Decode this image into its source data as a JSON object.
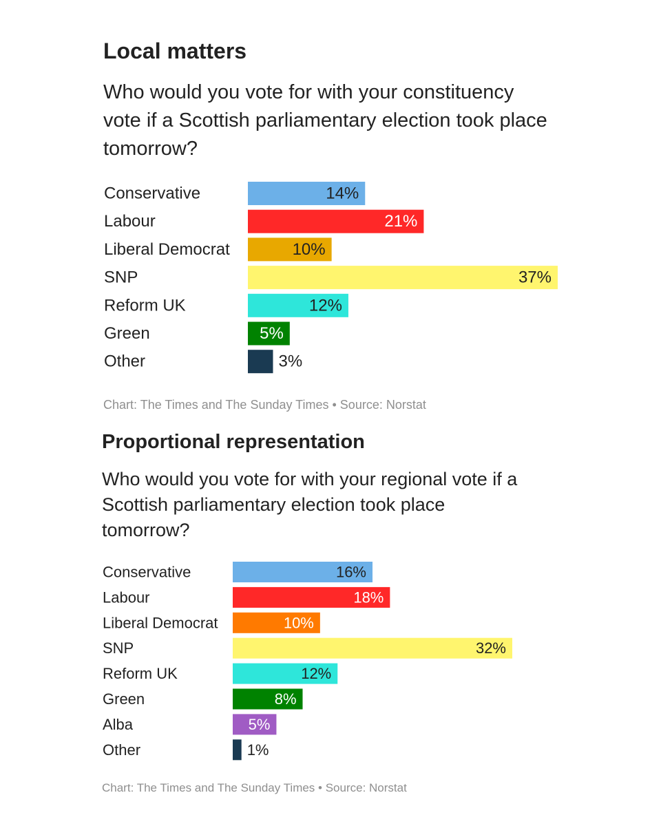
{
  "chart_data": [
    {
      "type": "bar",
      "orientation": "horizontal",
      "title": "Local matters",
      "subtitle": "Who would you vote for with your constituency vote if a Scottish parliamentary election took place tomorrow?",
      "categories": [
        "Conservative",
        "Labour",
        "Liberal Democrat",
        "SNP",
        "Reform UK",
        "Green",
        "Other"
      ],
      "values": [
        14,
        21,
        10,
        37,
        12,
        5,
        3
      ],
      "value_labels": [
        "14%",
        "21%",
        "10%",
        "37%",
        "12%",
        "5%",
        "3%"
      ],
      "colors": [
        "#6cb0e8",
        "#ff2828",
        "#e8a800",
        "#fff56e",
        "#2ee6da",
        "#008200",
        "#1a3a52"
      ],
      "label_colors": [
        "#222222",
        "#ffffff",
        "#222222",
        "#222222",
        "#222222",
        "#ffffff",
        "#222222"
      ],
      "xlim": [
        0,
        37
      ],
      "grid": false,
      "credit": "Chart: The Times and The Sunday Times • Source: Norstat"
    },
    {
      "type": "bar",
      "orientation": "horizontal",
      "title": "Proportional representation",
      "subtitle": "Who would you vote for with your regional vote if a Scottish parliamentary election took place tomorrow?",
      "categories": [
        "Conservative",
        "Labour",
        "Liberal Democrat",
        "SNP",
        "Reform UK",
        "Green",
        "Alba",
        "Other"
      ],
      "values": [
        16,
        18,
        10,
        32,
        12,
        8,
        5,
        1
      ],
      "value_labels": [
        "16%",
        "18%",
        "10%",
        "32%",
        "12%",
        "8%",
        "5%",
        "1%"
      ],
      "colors": [
        "#6cb0e8",
        "#ff2828",
        "#ff7a00",
        "#fff56e",
        "#2ee6da",
        "#008200",
        "#a05cc4",
        "#1a3a52"
      ],
      "label_colors": [
        "#222222",
        "#ffffff",
        "#ffffff",
        "#222222",
        "#222222",
        "#ffffff",
        "#ffffff",
        "#222222"
      ],
      "xlim": [
        0,
        32
      ],
      "grid": false,
      "credit": "Chart: The Times and The Sunday Times • Source: Norstat"
    }
  ]
}
